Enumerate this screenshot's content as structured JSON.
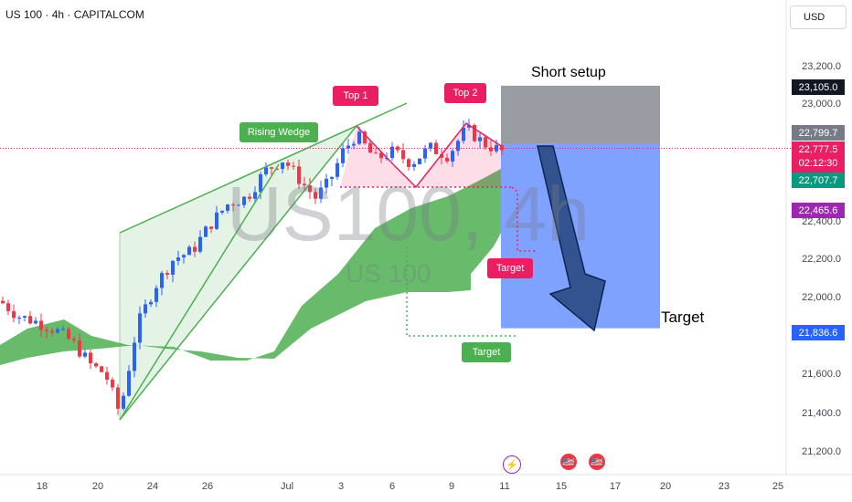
{
  "header": {
    "title": "US 100 · 4h · CAPITALCOM",
    "currency": "USD"
  },
  "watermark": {
    "symbol": "US100, 4h",
    "name": "US 100"
  },
  "chart_data": {
    "type": "candlestick",
    "symbol": "US 100",
    "interval": "4h",
    "y_axis": {
      "min": 21200,
      "max": 23400,
      "ticks": [
        "23,200.0",
        "23,000.0",
        "22,800.0",
        "22,600.0",
        "22,400.0",
        "22,200.0",
        "22,000.0",
        "21,800.0",
        "21,600.0",
        "21,400.0",
        "21,200.0"
      ]
    },
    "x_axis": {
      "labels": [
        "18",
        "20",
        "24",
        "26",
        "Jul",
        "3",
        "6",
        "9",
        "11",
        "15",
        "17",
        "20",
        "23",
        "25"
      ]
    },
    "price_badges": [
      {
        "value": "23,105.0",
        "color": "#131722"
      },
      {
        "value": "22,799.7",
        "color": "#787b86"
      },
      {
        "value": "22,777.5",
        "sub": "02:12:30",
        "color": "#e91e63"
      },
      {
        "value": "22,707.7",
        "color": "#089981"
      },
      {
        "value": "22,465.6",
        "color": "#9c27b0"
      },
      {
        "value": "21,836.6",
        "color": "#2962ff"
      }
    ],
    "annotations": [
      {
        "text": "Rising Wedge",
        "color": "#4caf50"
      },
      {
        "text": "Top 1",
        "color": "#e91e63"
      },
      {
        "text": "Top 2",
        "color": "#e91e63"
      },
      {
        "text": "Target",
        "color": "#e91e63"
      },
      {
        "text": "Target",
        "color": "#4caf50"
      },
      {
        "text": "Short setup"
      },
      {
        "text": "Target"
      }
    ],
    "position": {
      "type": "short",
      "stop": 23105.0,
      "entry": 22799.7,
      "target": 21836.6
    }
  }
}
